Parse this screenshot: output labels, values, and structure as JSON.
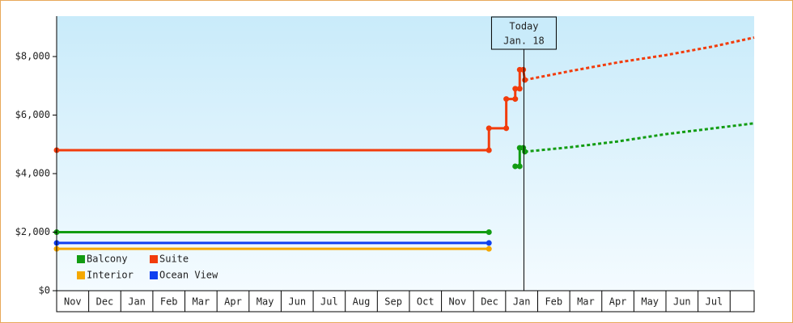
{
  "chart_data": {
    "type": "line",
    "ylim": [
      0,
      9380
    ],
    "yticks": [
      {
        "value": 0,
        "label": "$0"
      },
      {
        "value": 2000,
        "label": "$2,000"
      },
      {
        "value": 4000,
        "label": "$4,000"
      },
      {
        "value": 6000,
        "label": "$6,000"
      },
      {
        "value": 8000,
        "label": "$8,000"
      }
    ],
    "xlim": [
      0,
      21.75
    ],
    "xticks": [
      {
        "value": 0.5,
        "label": "Nov"
      },
      {
        "value": 1.5,
        "label": "Dec"
      },
      {
        "value": 2.5,
        "label": "Jan"
      },
      {
        "value": 3.5,
        "label": "Feb"
      },
      {
        "value": 4.5,
        "label": "Mar"
      },
      {
        "value": 5.5,
        "label": "Apr"
      },
      {
        "value": 6.5,
        "label": "May"
      },
      {
        "value": 7.5,
        "label": "Jun"
      },
      {
        "value": 8.5,
        "label": "Jul"
      },
      {
        "value": 9.5,
        "label": "Aug"
      },
      {
        "value": 10.5,
        "label": "Sep"
      },
      {
        "value": 11.5,
        "label": "Oct"
      },
      {
        "value": 12.5,
        "label": "Nov"
      },
      {
        "value": 13.5,
        "label": "Dec"
      },
      {
        "value": 14.5,
        "label": "Jan"
      },
      {
        "value": 15.5,
        "label": "Feb"
      },
      {
        "value": 16.5,
        "label": "Mar"
      },
      {
        "value": 17.5,
        "label": "Apr"
      },
      {
        "value": 18.5,
        "label": "May"
      },
      {
        "value": 19.5,
        "label": "Jun"
      },
      {
        "value": 20.5,
        "label": "Jul"
      }
    ],
    "today": {
      "x": 14.57,
      "label": "Today",
      "date": "Jan. 18"
    },
    "series": [
      {
        "name": "Balcony",
        "color": "#129c12",
        "x": [
          0,
          13.48,
          null,
          14.3,
          14.44,
          14.44,
          14.55,
          14.6
        ],
        "values": [
          2000,
          2000,
          null,
          4250,
          4250,
          4880,
          4880,
          4750
        ],
        "forecast_x": [
          14.6,
          16,
          17.5,
          19,
          20.5,
          21.75
        ],
        "forecast_values": [
          4750,
          4900,
          5100,
          5350,
          5550,
          5720
        ]
      },
      {
        "name": "Suite",
        "color": "#f23c0c",
        "x": [
          0,
          13.48,
          13.48,
          14.02,
          14.02,
          14.3,
          14.3,
          14.44,
          14.44,
          14.55,
          14.6
        ],
        "values": [
          4800,
          4800,
          5550,
          5550,
          6550,
          6550,
          6900,
          6900,
          7550,
          7550,
          7200
        ],
        "forecast_x": [
          14.6,
          16,
          17.5,
          19,
          20.5,
          21.75
        ],
        "forecast_values": [
          7200,
          7500,
          7800,
          8050,
          8350,
          8650
        ]
      },
      {
        "name": "Interior",
        "color": "#f5a800",
        "x": [
          0,
          13.48
        ],
        "values": [
          1430,
          1430
        ]
      },
      {
        "name": "Ocean View",
        "color": "#1040f0",
        "x": [
          0,
          13.48
        ],
        "values": [
          1630,
          1630
        ]
      }
    ]
  }
}
